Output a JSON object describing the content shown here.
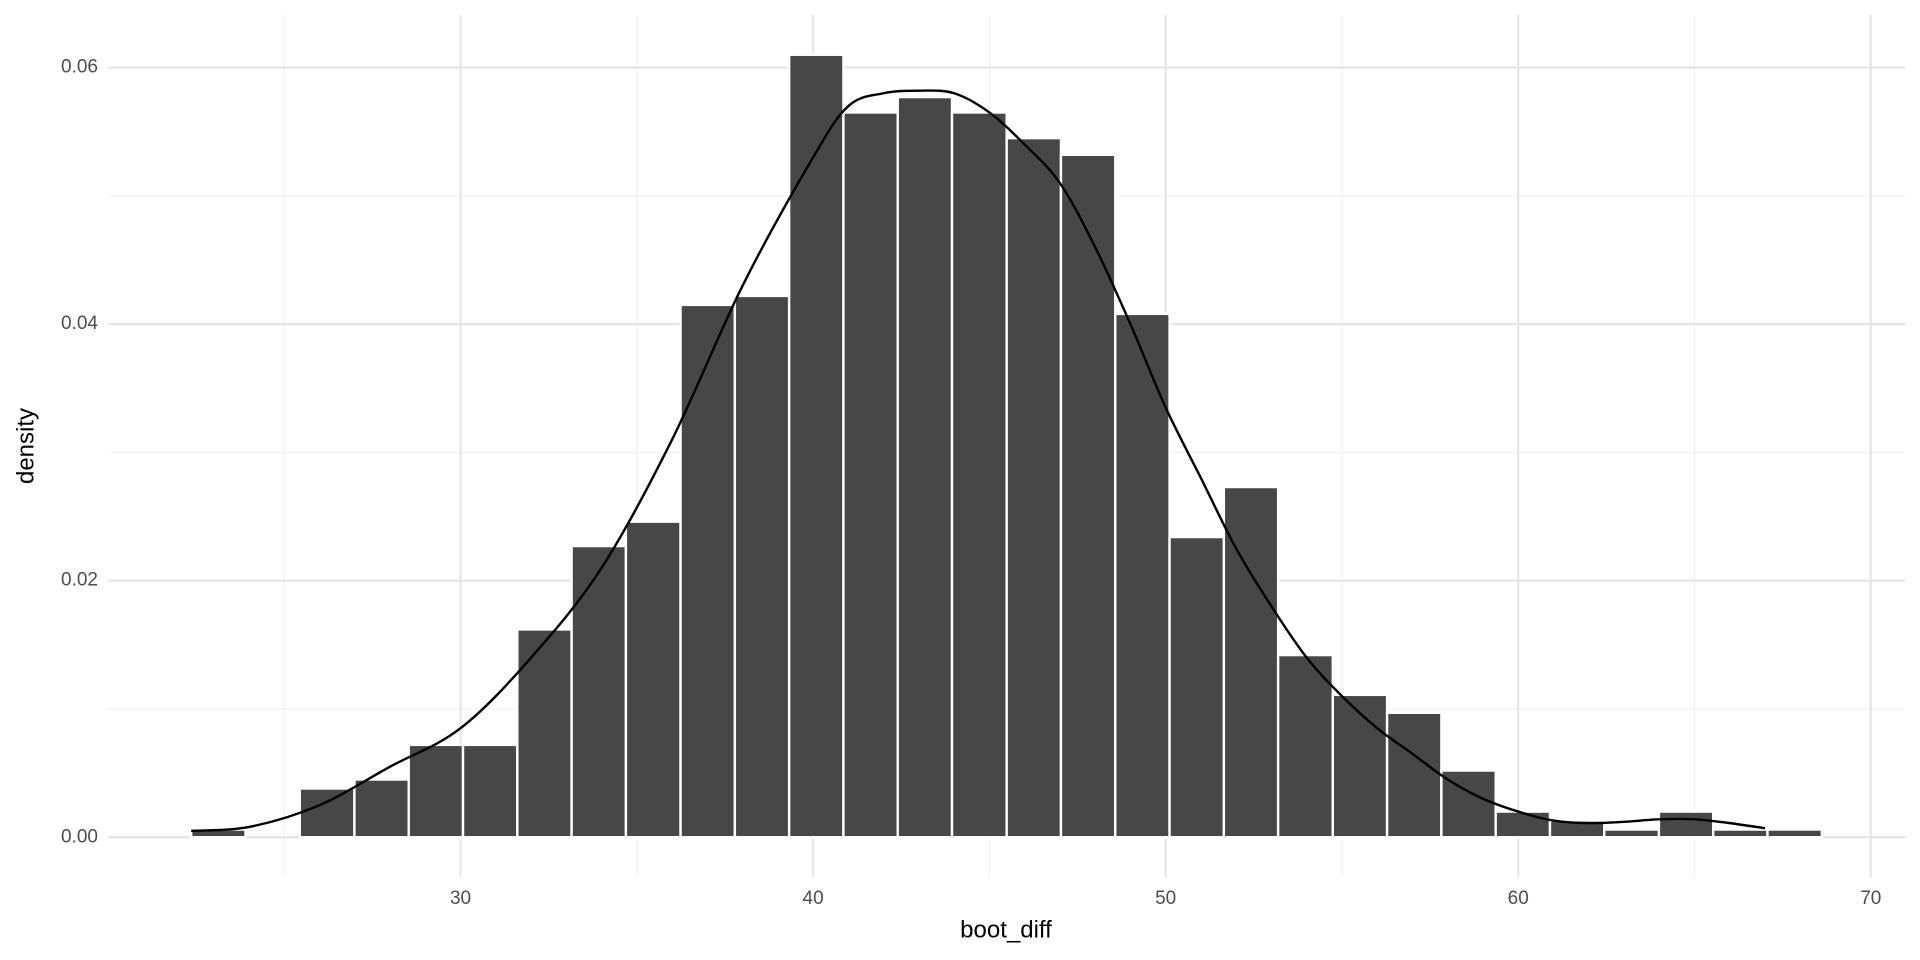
{
  "chart_data": {
    "type": "histogram",
    "x_label": "boot_diff",
    "y_label": "density",
    "bins": [
      22.36,
      23.9,
      25.44,
      26.99,
      28.53,
      30.07,
      31.61,
      33.15,
      34.69,
      36.24,
      37.78,
      39.32,
      40.86,
      42.4,
      43.94,
      45.49,
      47.03,
      48.57,
      50.11,
      51.65,
      53.19,
      54.74,
      56.28,
      57.82,
      59.36,
      60.9,
      62.44,
      63.99,
      65.53,
      67.07,
      68.61
    ],
    "values": [
      0.0006,
      0,
      0.0038,
      0.0045,
      0.0072,
      0.0072,
      0.0162,
      0.0227,
      0.0246,
      0.0415,
      0.0422,
      0.061,
      0.0565,
      0.0577,
      0.0565,
      0.0545,
      0.0532,
      0.0408,
      0.0234,
      0.0273,
      0.0142,
      0.0111,
      0.0097,
      0.0052,
      0.002,
      0.0013,
      0.0006,
      0.002,
      0.0006,
      0.0006
    ],
    "color": "#474747",
    "density": {
      "color": "#000000",
      "x": [
        22.36,
        24,
        26,
        28,
        30,
        32,
        34,
        36,
        38,
        40,
        41,
        42,
        43,
        44,
        45,
        46,
        47,
        48,
        49,
        50,
        51,
        52,
        53,
        54,
        55,
        56,
        57,
        58,
        59,
        60,
        61,
        62,
        63,
        64,
        65,
        66,
        67
      ],
      "values": [
        0.0005,
        0.0008,
        0.0025,
        0.0055,
        0.0085,
        0.014,
        0.021,
        0.031,
        0.043,
        0.053,
        0.057,
        0.058,
        0.0582,
        0.058,
        0.0565,
        0.054,
        0.051,
        0.046,
        0.04,
        0.0335,
        0.028,
        0.0225,
        0.018,
        0.014,
        0.011,
        0.0085,
        0.0065,
        0.0045,
        0.003,
        0.002,
        0.0013,
        0.0011,
        0.0012,
        0.0014,
        0.0014,
        0.0011,
        0.0007
      ]
    },
    "xlim": [
      20.0,
      70.97
    ],
    "ylim": [
      -0.0031,
      0.0641
    ],
    "xticks": [
      30,
      40,
      50,
      60,
      70
    ],
    "yticks": [
      {
        "value": 0,
        "label": "0.00"
      },
      0.02,
      0.04,
      0.06
    ],
    "grid": true
  }
}
